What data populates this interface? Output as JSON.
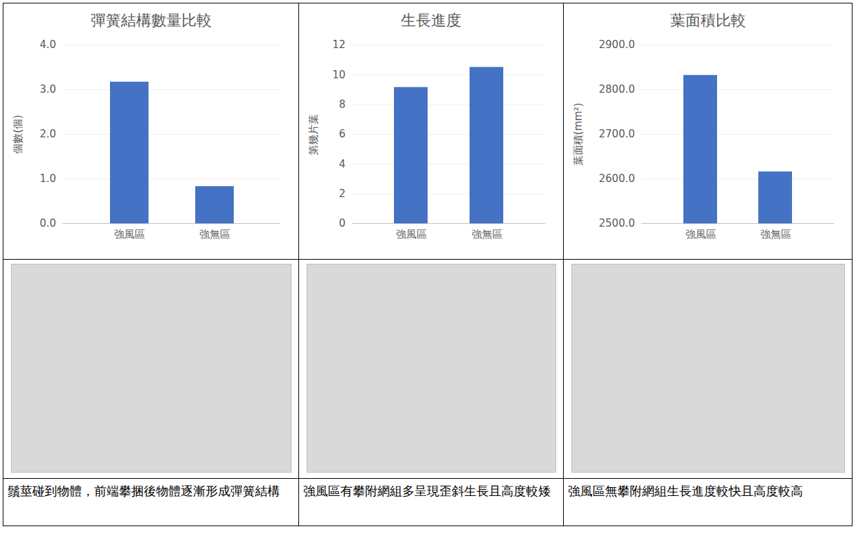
{
  "chart_data": [
    {
      "type": "bar",
      "title": "彈簧結構數量比較",
      "ylabel": "個數(個)",
      "categories": [
        "強風區",
        "強無區"
      ],
      "values": [
        3.17,
        0.83
      ],
      "color": "#4472c4",
      "ylim": [
        0,
        4
      ],
      "yticks": [
        {
          "value": 0,
          "label": "0.0"
        },
        {
          "value": 1,
          "label": "1.0"
        },
        {
          "value": 2,
          "label": "2.0"
        },
        {
          "value": 3,
          "label": "3.0"
        },
        {
          "value": 4,
          "label": "4.0"
        }
      ],
      "grid": true
    },
    {
      "type": "bar",
      "title": "生長進度",
      "ylabel": "第幾片葉",
      "categories": [
        "強風區",
        "強無區"
      ],
      "values": [
        9.15,
        10.5
      ],
      "color": "#4472c4",
      "ylim": [
        0,
        12
      ],
      "yticks": [
        0,
        2,
        4,
        6,
        8,
        10,
        12
      ],
      "grid": true
    },
    {
      "type": "bar",
      "title": "葉面積比較",
      "ylabel": "葉面積(mm²)",
      "categories": [
        "強風區",
        "強無區"
      ],
      "values": [
        2832,
        2616
      ],
      "color": "#4472c4",
      "ylim": [
        2500,
        2900
      ],
      "yticks": [
        {
          "value": 2500,
          "label": "2500.0"
        },
        {
          "value": 2600,
          "label": "2600.0"
        },
        {
          "value": 2700,
          "label": "2700.0"
        },
        {
          "value": 2800,
          "label": "2800.0"
        },
        {
          "value": 2900,
          "label": "2900.0"
        }
      ],
      "grid": true
    }
  ],
  "photos": [
    {
      "caption": "鬚莖碰到物體，前端攀捆後物體逐漸形成彈簧結構"
    },
    {
      "caption": "強風區有攀附網組多呈現歪斜生長且高度較矮"
    },
    {
      "caption": "強風區無攀附網組生長進度較快且高度較高"
    }
  ]
}
